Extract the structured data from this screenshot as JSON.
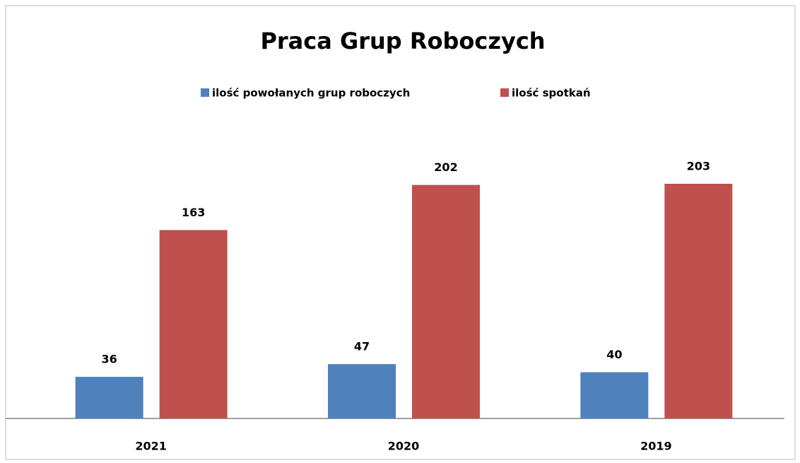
{
  "chart_data": {
    "type": "bar",
    "title": "Praca Grup Roboczych",
    "categories": [
      "2021",
      "2020",
      "2019"
    ],
    "series": [
      {
        "name": "ilość powołanych grup roboczych",
        "color": "#4f81bd",
        "values": [
          36,
          47,
          40
        ]
      },
      {
        "name": "ilość spotkań",
        "color": "#c0504d",
        "values": [
          163,
          202,
          203
        ]
      }
    ],
    "legend": "top"
  }
}
